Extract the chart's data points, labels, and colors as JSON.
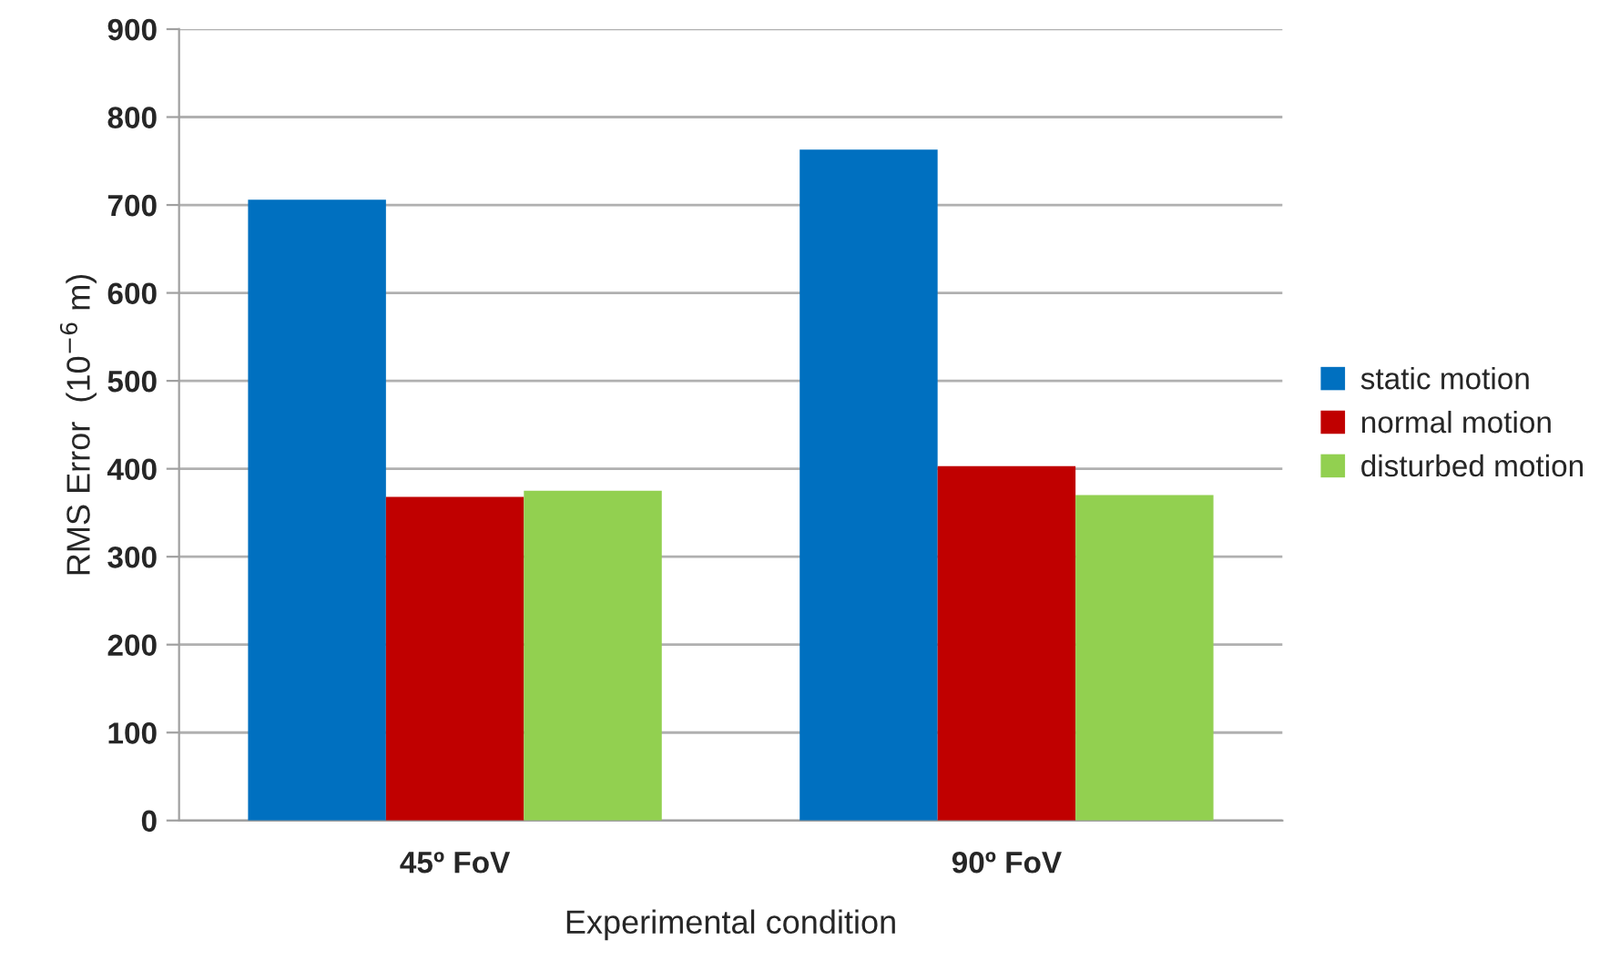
{
  "chart_data": {
    "type": "bar",
    "categories": [
      "45º FoV",
      "90º FoV"
    ],
    "series": [
      {
        "name": "static motion",
        "color": "#0070c0",
        "values": [
          706,
          763
        ]
      },
      {
        "name": "normal motion",
        "color": "#c00000",
        "values": [
          368,
          403
        ]
      },
      {
        "name": "disturbed motion",
        "color": "#92d050",
        "values": [
          375,
          370
        ]
      }
    ],
    "xlabel": "Experimental condition",
    "ylabel": "RMS Error  (10$^{−6}$ m)",
    "ylim": [
      0,
      900
    ],
    "yticks": [
      0,
      100,
      200,
      300,
      400,
      500,
      600,
      700,
      800,
      900
    ],
    "grid": "y",
    "legend": "right"
  }
}
